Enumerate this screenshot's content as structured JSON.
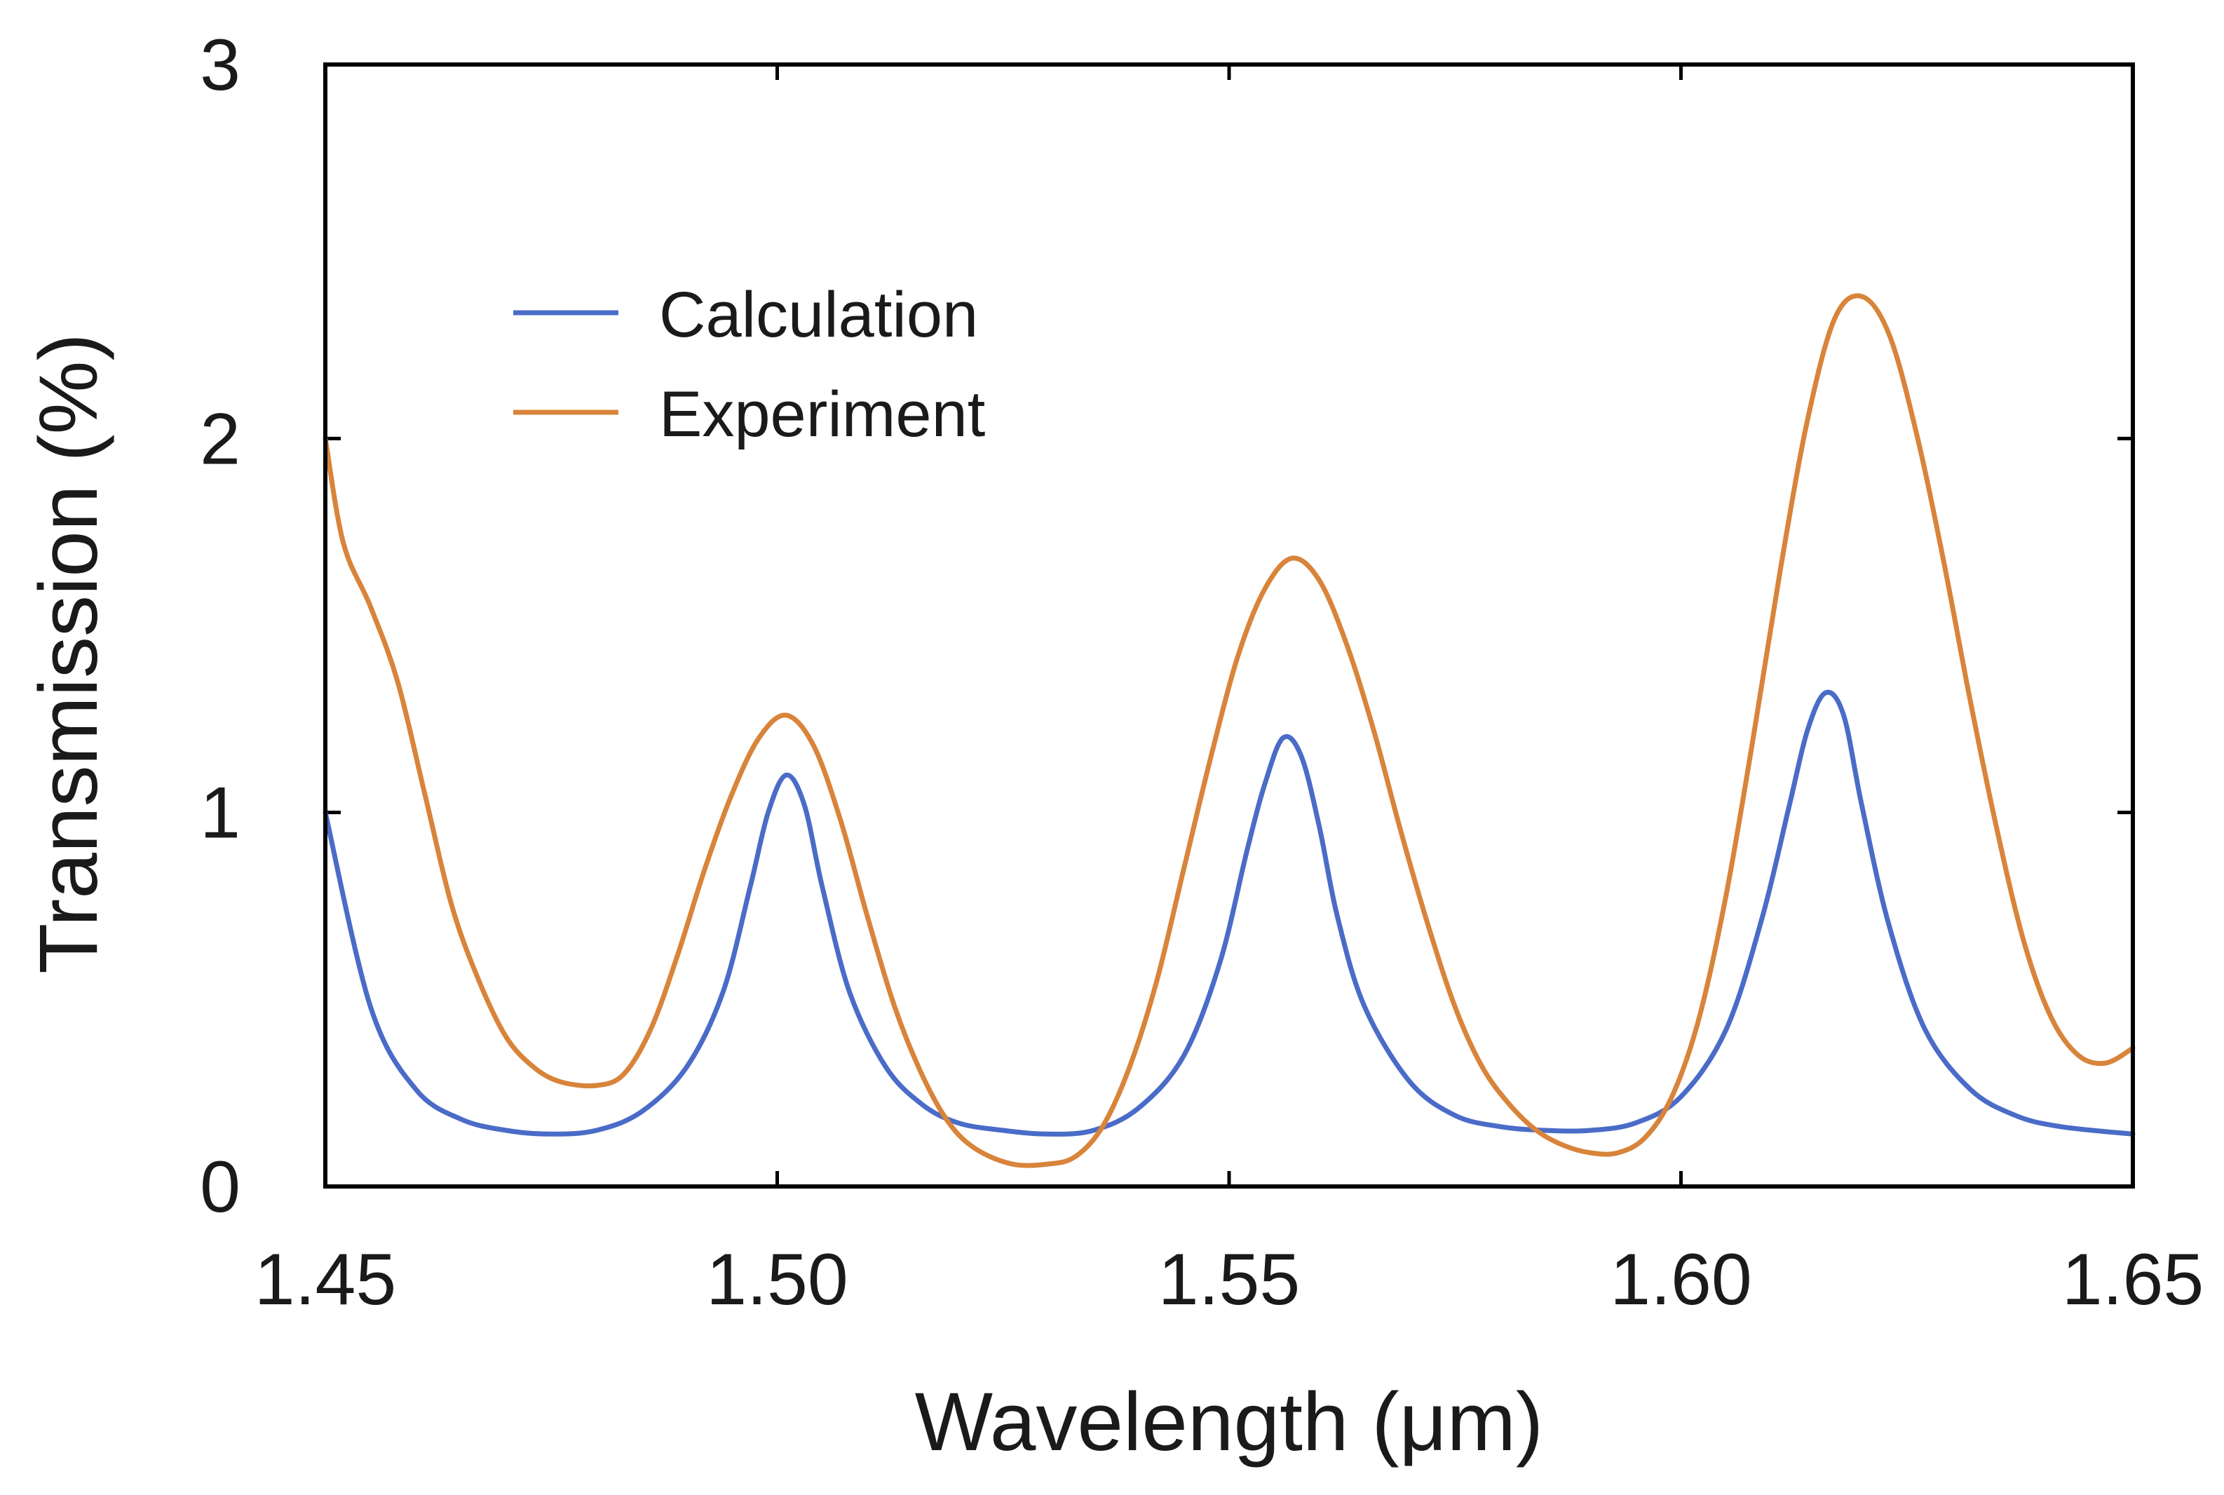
{
  "chart_data": {
    "type": "line",
    "title": "",
    "xlabel": "Wavelength (μm)",
    "ylabel": "Transmission (%)",
    "xlim": [
      1.45,
      1.65
    ],
    "ylim": [
      0,
      3
    ],
    "x_ticks": [
      1.45,
      1.5,
      1.55,
      1.6,
      1.65
    ],
    "x_tick_labels": [
      "1.45",
      "1.50",
      "1.55",
      "1.60",
      "1.65"
    ],
    "y_ticks": [
      0,
      1,
      2,
      3
    ],
    "y_tick_labels": [
      "0",
      "1",
      "2",
      "3"
    ],
    "grid": false,
    "legend_position": "upper-left",
    "series": [
      {
        "name": "Calculation",
        "color": "#4a6cc8",
        "x": [
          1.45,
          1.455,
          1.46,
          1.465,
          1.47,
          1.475,
          1.48,
          1.485,
          1.49,
          1.494,
          1.497,
          1.499,
          1.501,
          1.503,
          1.505,
          1.508,
          1.512,
          1.516,
          1.52,
          1.525,
          1.53,
          1.535,
          1.54,
          1.545,
          1.549,
          1.552,
          1.554,
          1.556,
          1.558,
          1.56,
          1.562,
          1.565,
          1.57,
          1.575,
          1.58,
          1.585,
          1.59,
          1.595,
          1.6,
          1.605,
          1.609,
          1.612,
          1.614,
          1.616,
          1.618,
          1.62,
          1.623,
          1.627,
          1.632,
          1.637,
          1.642,
          1.65
        ],
        "y": [
          1.0,
          0.48,
          0.26,
          0.18,
          0.15,
          0.14,
          0.15,
          0.2,
          0.32,
          0.52,
          0.8,
          1.0,
          1.1,
          1.02,
          0.8,
          0.52,
          0.32,
          0.22,
          0.17,
          0.15,
          0.14,
          0.15,
          0.21,
          0.35,
          0.6,
          0.9,
          1.08,
          1.2,
          1.15,
          0.96,
          0.72,
          0.48,
          0.28,
          0.19,
          0.16,
          0.15,
          0.15,
          0.17,
          0.24,
          0.42,
          0.72,
          1.02,
          1.22,
          1.32,
          1.26,
          1.02,
          0.7,
          0.42,
          0.26,
          0.19,
          0.16,
          0.14
        ]
      },
      {
        "name": "Experiment",
        "color": "#d8843a",
        "x": [
          1.45,
          1.452,
          1.455,
          1.458,
          1.461,
          1.464,
          1.467,
          1.47,
          1.473,
          1.476,
          1.48,
          1.483,
          1.486,
          1.489,
          1.492,
          1.495,
          1.498,
          1.501,
          1.504,
          1.507,
          1.51,
          1.513,
          1.516,
          1.519,
          1.522,
          1.526,
          1.53,
          1.533,
          1.536,
          1.539,
          1.542,
          1.545,
          1.548,
          1.551,
          1.554,
          1.557,
          1.56,
          1.563,
          1.566,
          1.569,
          1.572,
          1.575,
          1.578,
          1.581,
          1.584,
          1.587,
          1.59,
          1.593,
          1.596,
          1.599,
          1.602,
          1.605,
          1.608,
          1.611,
          1.614,
          1.617,
          1.62,
          1.623,
          1.626,
          1.629,
          1.632,
          1.635,
          1.638,
          1.641,
          1.644,
          1.647,
          1.65
        ],
        "y": [
          2.0,
          1.72,
          1.55,
          1.35,
          1.05,
          0.75,
          0.55,
          0.4,
          0.32,
          0.28,
          0.27,
          0.3,
          0.42,
          0.62,
          0.85,
          1.05,
          1.2,
          1.26,
          1.18,
          0.98,
          0.72,
          0.48,
          0.3,
          0.17,
          0.1,
          0.06,
          0.06,
          0.08,
          0.16,
          0.32,
          0.55,
          0.85,
          1.15,
          1.42,
          1.6,
          1.68,
          1.62,
          1.45,
          1.22,
          0.95,
          0.7,
          0.48,
          0.32,
          0.22,
          0.15,
          0.11,
          0.09,
          0.09,
          0.13,
          0.24,
          0.45,
          0.78,
          1.2,
          1.65,
          2.05,
          2.32,
          2.38,
          2.28,
          2.02,
          1.68,
          1.3,
          0.95,
          0.65,
          0.45,
          0.35,
          0.33,
          0.37
        ]
      }
    ]
  }
}
